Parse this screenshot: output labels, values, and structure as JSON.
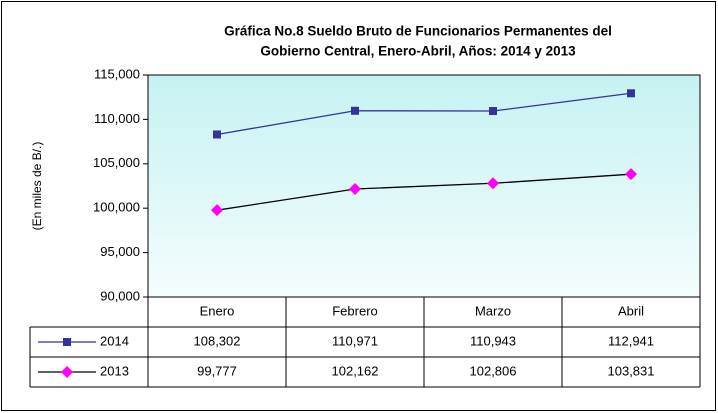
{
  "chart_data": {
    "type": "line",
    "title": [
      "Gráfica No.8 Sueldo Bruto de Funcionarios Permanentes del",
      "Gobierno Central, Enero-Abril, Años: 2014 y 2013"
    ],
    "y_label": "(En miles de B/.)",
    "categories": [
      "Enero",
      "Febrero",
      "Marzo",
      "Abril"
    ],
    "series": [
      {
        "name": "2014",
        "color": "#333399",
        "marker_color": "#333399",
        "marker": "square",
        "values": [
          108302,
          110971,
          110943,
          112941
        ],
        "value_labels": [
          "108,302",
          "110,971",
          "110,943",
          "112,941"
        ]
      },
      {
        "name": "2013",
        "color": "#000000",
        "marker_color": "#ff00ff",
        "marker": "diamond",
        "values": [
          99777,
          102162,
          102806,
          103831
        ],
        "value_labels": [
          "99,777",
          "102,162",
          "102,806",
          "103,831"
        ]
      }
    ],
    "ylim": [
      90000,
      115000
    ],
    "yticks": [
      {
        "value": 90000,
        "label": "90,000"
      },
      {
        "value": 95000,
        "label": "95,000"
      },
      {
        "value": 100000,
        "label": "100,000"
      },
      {
        "value": 105000,
        "label": "105,000"
      },
      {
        "value": 110000,
        "label": "110,000"
      },
      {
        "value": 115000,
        "label": "115,000"
      }
    ],
    "grid": false
  }
}
